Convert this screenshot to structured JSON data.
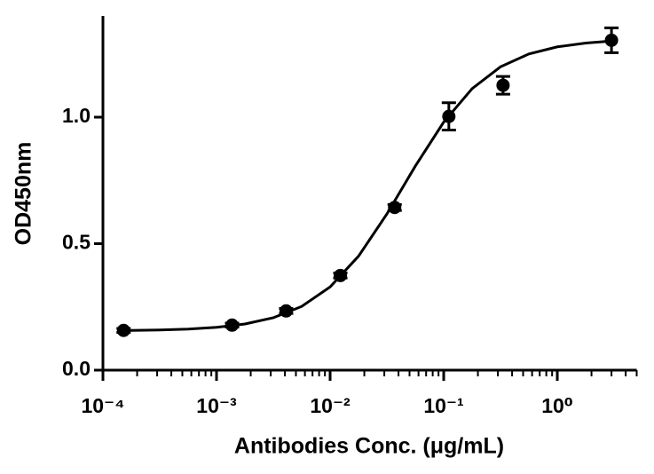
{
  "chart_data": {
    "type": "scatter",
    "x_label": "Antibodies Conc. (μg/mL)",
    "y_label": "OD450nm",
    "xscale": "log",
    "xlim": [
      0.0001,
      5
    ],
    "ylim": [
      0,
      1.4
    ],
    "xticks": [
      {
        "value": 0.0001,
        "label": "10⁻⁴"
      },
      {
        "value": 0.001,
        "label": "10⁻³"
      },
      {
        "value": 0.01,
        "label": "10⁻²"
      },
      {
        "value": 0.1,
        "label": "10⁻¹"
      },
      {
        "value": 1,
        "label": "10⁰"
      }
    ],
    "xminorticks": [
      0.0002,
      0.0003,
      0.0004,
      0.0005,
      0.0006,
      0.0007,
      0.0008,
      0.0009,
      0.002,
      0.003,
      0.004,
      0.005,
      0.006,
      0.007,
      0.008,
      0.009,
      0.02,
      0.03,
      0.04,
      0.05,
      0.06,
      0.07,
      0.08,
      0.09,
      0.2,
      0.3,
      0.4,
      0.5,
      0.6,
      0.7,
      0.8,
      0.9,
      2,
      3,
      4,
      5
    ],
    "yticks": [
      {
        "value": 0,
        "label": "0.0"
      },
      {
        "value": 0.5,
        "label": "0.5"
      },
      {
        "value": 1,
        "label": "1.0"
      }
    ],
    "grid": false,
    "series": [
      {
        "type": "scatter",
        "color": "#000000",
        "x": [
          0.000152,
          0.00137,
          0.0041,
          0.0123,
          0.037,
          0.111,
          0.333,
          3
        ],
        "values": [
          0.157,
          0.178,
          0.234,
          0.374,
          0.643,
          1.003,
          1.126,
          1.304
        ],
        "errors": [
          0.008,
          0.008,
          0.01,
          0.01,
          0.012,
          0.054,
          0.035,
          0.049
        ]
      },
      {
        "type": "line",
        "color": "#000000",
        "x": [
          0.000151,
          0.000316,
          0.000562,
          0.001,
          0.00178,
          0.00316,
          0.00562,
          0.01,
          0.0178,
          0.0316,
          0.0562,
          0.1,
          0.178,
          0.316,
          0.562,
          1,
          1.78,
          2.82
        ],
        "values": [
          0.1567,
          0.1588,
          0.1624,
          0.1693,
          0.1825,
          0.2071,
          0.2519,
          0.3291,
          0.4507,
          0.6171,
          0.8063,
          0.9806,
          1.113,
          1.199,
          1.25,
          1.278,
          1.293,
          1.3
        ]
      }
    ]
  }
}
